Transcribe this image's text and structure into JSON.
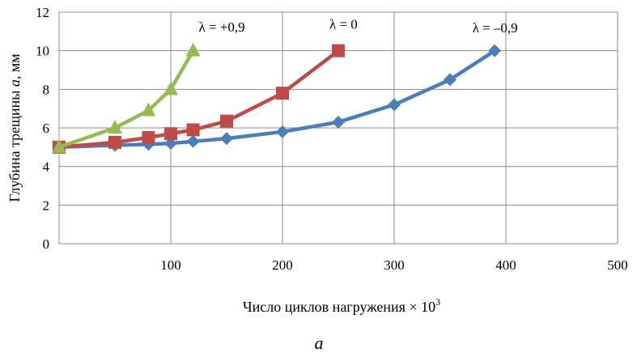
{
  "chart_data": {
    "type": "line",
    "title": "",
    "xlabel": "Число циклов нагружения × 10³",
    "xlabel_text": "Число циклов нагружения × 10",
    "xlabel_sup": "3",
    "ylabel": "Глубина трещины a, мм",
    "ylabel_pre": "Глубина трещины ",
    "ylabel_var": "a",
    "ylabel_post": ", мм",
    "xlim": [
      0,
      500
    ],
    "ylim": [
      0,
      12
    ],
    "x_ticks": [
      100,
      200,
      300,
      400,
      500
    ],
    "y_ticks": [
      0,
      2,
      4,
      6,
      8,
      10,
      12
    ],
    "grid": "vertical",
    "legend": "none",
    "series": [
      {
        "name": "λ = –0,9",
        "color": "#4a7ebb",
        "marker": "diamond",
        "x": [
          0,
          50,
          80,
          100,
          120,
          150,
          200,
          250,
          300,
          350,
          390
        ],
        "y": [
          5.0,
          5.1,
          5.15,
          5.2,
          5.3,
          5.45,
          5.8,
          6.3,
          7.2,
          8.5,
          10.0
        ]
      },
      {
        "name": "λ = 0",
        "color": "#be4b48",
        "marker": "square",
        "x": [
          0,
          50,
          80,
          100,
          120,
          150,
          200,
          250
        ],
        "y": [
          5.0,
          5.25,
          5.5,
          5.7,
          5.9,
          6.35,
          7.8,
          10.0
        ]
      },
      {
        "name": "λ = +0,9",
        "color": "#98b954",
        "marker": "triangle",
        "x": [
          0,
          50,
          80,
          100,
          120
        ],
        "y": [
          5.0,
          6.0,
          6.9,
          8.0,
          10.0
        ]
      }
    ],
    "annotations": [
      {
        "text": "λ = +0,9",
        "x": 125,
        "y": 11.0
      },
      {
        "text": "λ = 0",
        "x": 242,
        "y": 11.15
      },
      {
        "text": "λ = –0,9",
        "x": 370,
        "y": 10.95
      }
    ]
  },
  "caption": "a"
}
